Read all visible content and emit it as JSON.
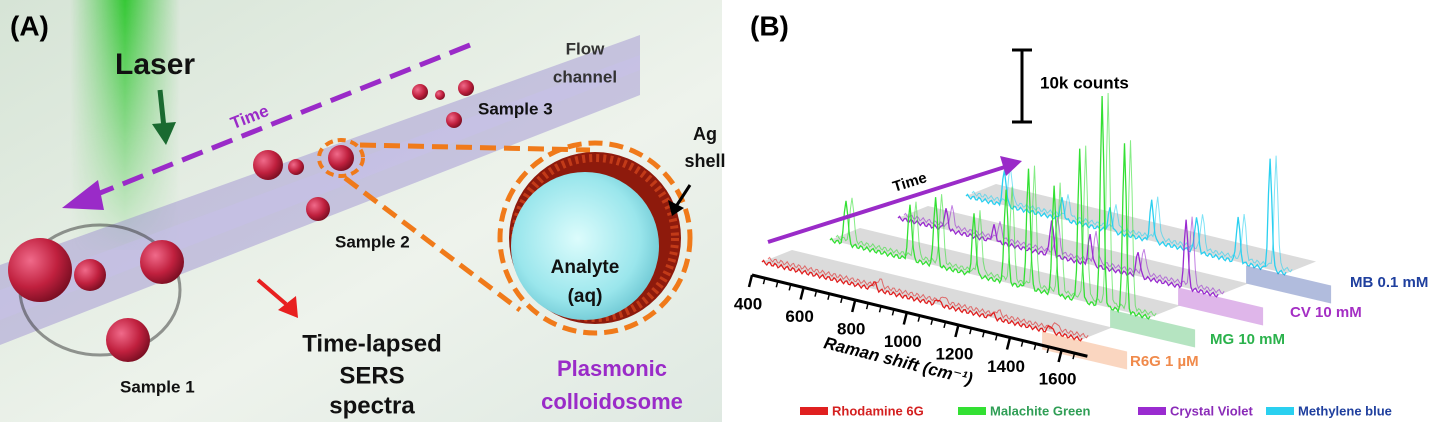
{
  "panel_a": {
    "label": "(A)",
    "laser": "Laser",
    "time": "Time",
    "flow_channel": [
      "Flow",
      "channel"
    ],
    "sample_3": "Sample 3",
    "ag_shell": [
      "Ag",
      "shell"
    ],
    "sample_2": "Sample 2",
    "analyte": [
      "Analyte",
      "(aq)"
    ],
    "sample_1": "Sample 1",
    "spectra_caption": [
      "Time-lapsed",
      "SERS",
      "spectra"
    ],
    "colloidosome": [
      "Plasmonic",
      "colloidosome"
    ]
  },
  "panel_b": {
    "label": "(B)",
    "scale_bar": "10k counts",
    "time": "Time",
    "x_label": "Raman shift (cm⁻¹)",
    "x_ticks": [
      400,
      600,
      800,
      1000,
      1200,
      1400,
      1600
    ],
    "sample_labels": [
      {
        "text": "R6G 1 µM",
        "color": "#f08a4b"
      },
      {
        "text": "MG 10 mM",
        "color": "#2bb24c"
      },
      {
        "text": "CV 10 mM",
        "color": "#a42fc4"
      },
      {
        "text": "MB 0.1 mM",
        "color": "#1f3f9e"
      }
    ],
    "legend": [
      {
        "name": "Rhodamine 6G",
        "color": "#e02020",
        "text_color": "#d42020"
      },
      {
        "name": "Malachite Green",
        "color": "#33e033",
        "text_color": "#2f9e55"
      },
      {
        "name": "Crystal Violet",
        "color": "#9a2bd0",
        "text_color": "#8a2bb8"
      },
      {
        "name": "Methylene blue",
        "color": "#2ad0f0",
        "text_color": "#1f3f9e"
      }
    ]
  }
}
